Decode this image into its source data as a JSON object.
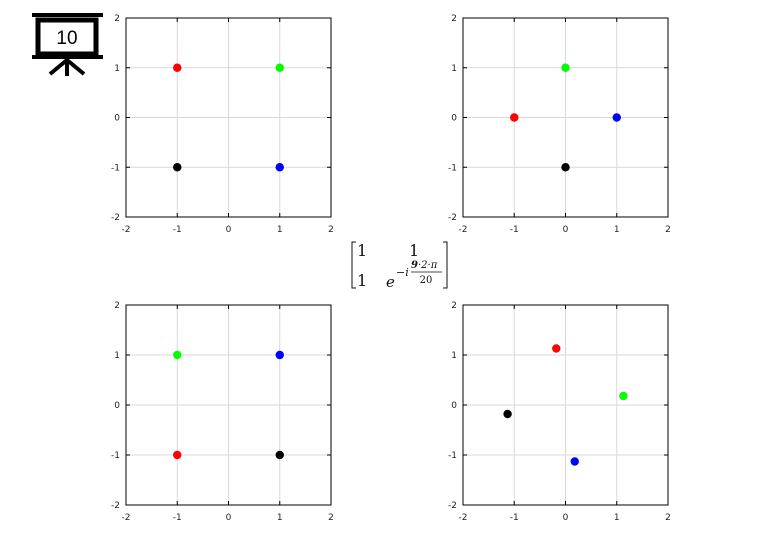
{
  "badge": {
    "label": "10",
    "icon": "presentation-board-icon"
  },
  "matrix": {
    "r1c1": "1",
    "r1c2": "1",
    "r2c1": "1",
    "base": "e",
    "exp_sign": "−i",
    "exp_highlight": "9",
    "exp_rest": "·2·π",
    "exp_den": "20",
    "highlight_color": "#dd0000"
  },
  "chart_data": [
    {
      "type": "scatter",
      "xlim": [
        -2,
        2
      ],
      "ylim": [
        -2,
        2
      ],
      "xticks": [
        "-2",
        "-1",
        "0",
        "1",
        "2"
      ],
      "yticks": [
        "-2",
        "-1",
        "0",
        "1",
        "2"
      ],
      "grid": true,
      "points": [
        {
          "x": -1,
          "y": 1,
          "color": "#ff0000"
        },
        {
          "x": 1,
          "y": 1,
          "color": "#00ff00"
        },
        {
          "x": -1,
          "y": -1,
          "color": "#000000"
        },
        {
          "x": 1,
          "y": -1,
          "color": "#0000ff"
        }
      ]
    },
    {
      "type": "scatter",
      "xlim": [
        -2,
        2
      ],
      "ylim": [
        -2,
        2
      ],
      "xticks": [
        "-2",
        "-1",
        "0",
        "1",
        "2"
      ],
      "yticks": [
        "-2",
        "-1",
        "0",
        "1",
        "2"
      ],
      "grid": true,
      "points": [
        {
          "x": 0,
          "y": 1,
          "color": "#00ff00"
        },
        {
          "x": -1,
          "y": 0,
          "color": "#ff0000"
        },
        {
          "x": 1,
          "y": 0,
          "color": "#0000ff"
        },
        {
          "x": 0,
          "y": -1,
          "color": "#000000"
        }
      ]
    },
    {
      "type": "scatter",
      "xlim": [
        -2,
        2
      ],
      "ylim": [
        -2,
        2
      ],
      "xticks": [
        "-2",
        "-1",
        "0",
        "1",
        "2"
      ],
      "yticks": [
        "-2",
        "-1",
        "0",
        "1",
        "2"
      ],
      "grid": true,
      "points": [
        {
          "x": -1,
          "y": 1,
          "color": "#00ff00"
        },
        {
          "x": 1,
          "y": 1,
          "color": "#0000ff"
        },
        {
          "x": -1,
          "y": -1,
          "color": "#ff0000"
        },
        {
          "x": 1,
          "y": -1,
          "color": "#000000"
        }
      ]
    },
    {
      "type": "scatter",
      "xlim": [
        -2,
        2
      ],
      "ylim": [
        -2,
        2
      ],
      "xticks": [
        "-2",
        "-1",
        "0",
        "1",
        "2"
      ],
      "yticks": [
        "-2",
        "-1",
        "0",
        "1",
        "2"
      ],
      "grid": true,
      "points": [
        {
          "x": -0.18,
          "y": 1.13,
          "color": "#ff0000"
        },
        {
          "x": 1.13,
          "y": 0.18,
          "color": "#00ff00"
        },
        {
          "x": -1.13,
          "y": -0.18,
          "color": "#000000"
        },
        {
          "x": 0.18,
          "y": -1.13,
          "color": "#0000ff"
        }
      ]
    }
  ]
}
